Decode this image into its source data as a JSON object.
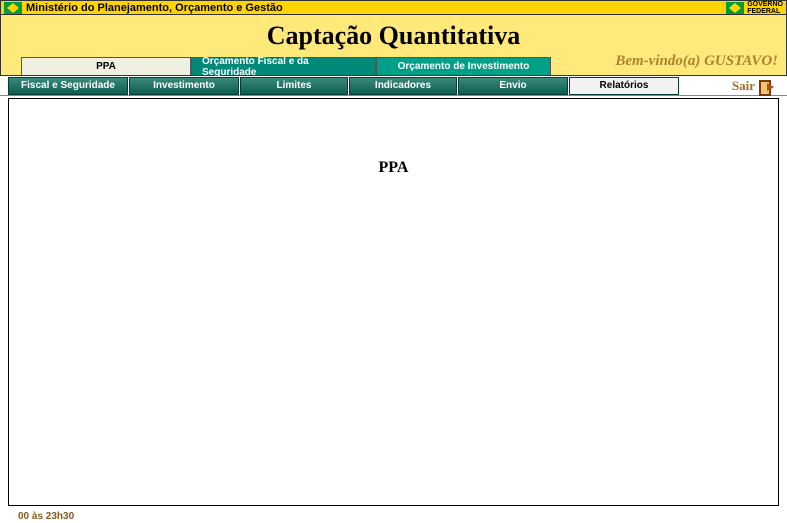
{
  "topbar": {
    "ministry": "Ministério do Planejamento, Orçamento e Gestão",
    "gov_line1": "GOVERNO",
    "gov_line2": "FEDERAL"
  },
  "header": {
    "title": "Captação Quantitativa",
    "welcome": "Bem-vindo(a) GUSTAVO!"
  },
  "top_tabs": {
    "ppa": "PPA",
    "fiscal": "Orçamento Fiscal e da Seguridade",
    "investimento": "Orçamento de Investimento"
  },
  "sub_tabs": {
    "fiscal_seg": "Fiscal e Seguridade",
    "investimento": "Investimento",
    "limites": "Limites",
    "indicadores": "Indicadores",
    "envio": "Envio",
    "relatorios": "Relatórios"
  },
  "actions": {
    "sair": "Sair"
  },
  "content": {
    "heading": "PPA"
  },
  "status": {
    "time": "00 às 23h30"
  },
  "colors": {
    "yellow_bar": "#ffd400",
    "light_yellow": "#ffe97a",
    "teal_dark": "#008878",
    "teal_light": "#00a088",
    "subtab_grad_top": "#3a8a7c",
    "subtab_grad_bottom": "#0d5c50",
    "welcome_text": "#b08030",
    "sair_text": "#a86b2a",
    "status_text": "#8a5a20"
  }
}
